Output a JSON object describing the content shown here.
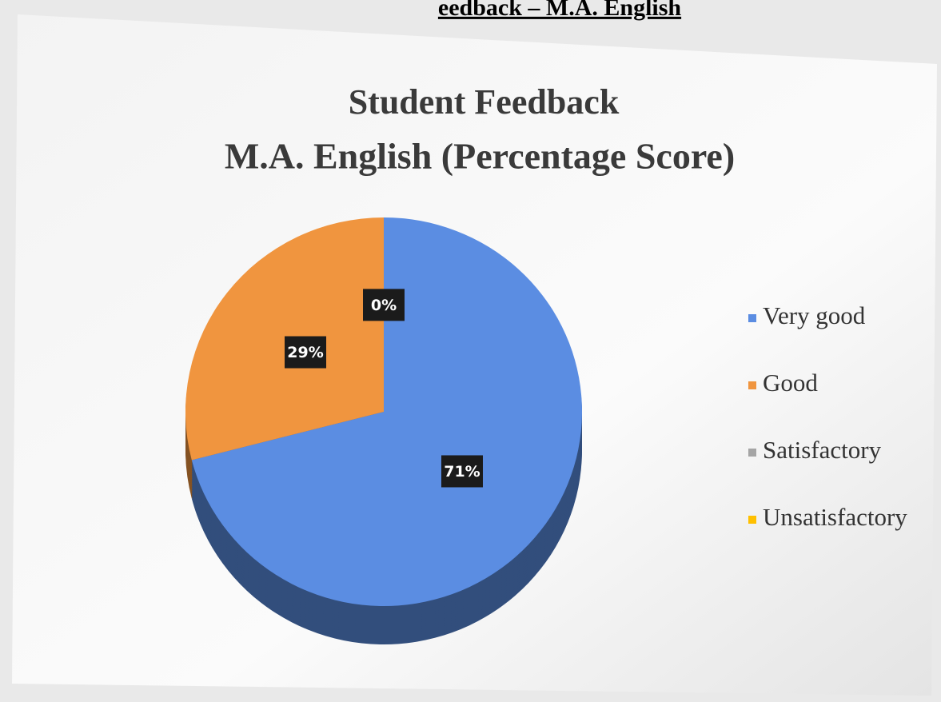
{
  "page_heading": "eedback – M.A. English",
  "chart_data": {
    "type": "pie",
    "title": "Student Feedback",
    "subtitle": "M.A. English (Percentage Score)",
    "categories": [
      "Very good",
      "Good",
      "Satisfactory",
      "Unsatisfactory"
    ],
    "values": [
      71,
      29,
      0,
      0
    ],
    "value_labels": [
      "71%",
      "29%",
      "0%",
      null
    ],
    "colors": [
      "#5b8de2",
      "#f0953f",
      "#a5a5a5",
      "#ffc000"
    ],
    "legend": "right"
  }
}
